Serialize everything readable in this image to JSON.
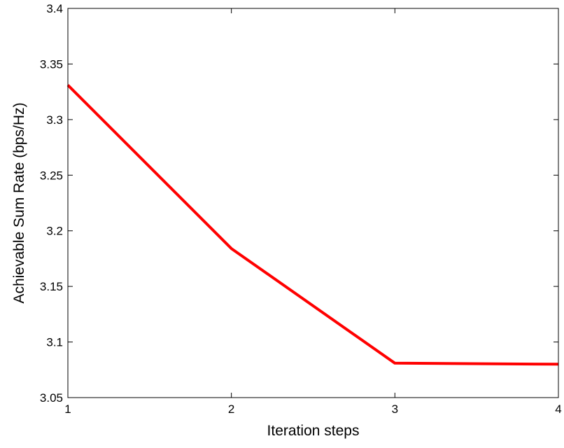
{
  "chart_data": {
    "type": "line",
    "xlabel": "Iteration steps",
    "ylabel": "Achievable Sum Rate (bps/Hz)",
    "xlim": [
      1,
      4
    ],
    "ylim": [
      3.05,
      3.4
    ],
    "x_ticks": [
      1,
      2,
      3,
      4
    ],
    "y_ticks": [
      3.05,
      3.1,
      3.15,
      3.2,
      3.25,
      3.3,
      3.35,
      3.4
    ],
    "x_tick_labels": [
      "1",
      "2",
      "3",
      "4"
    ],
    "y_tick_labels": [
      "3.05",
      "3.1",
      "3.15",
      "3.2",
      "3.25",
      "3.3",
      "3.35",
      "3.4"
    ],
    "grid": false,
    "series": [
      {
        "color": "#ff0000",
        "x": [
          1,
          2,
          3,
          4
        ],
        "y": [
          3.331,
          3.184,
          3.081,
          3.08
        ]
      }
    ]
  }
}
